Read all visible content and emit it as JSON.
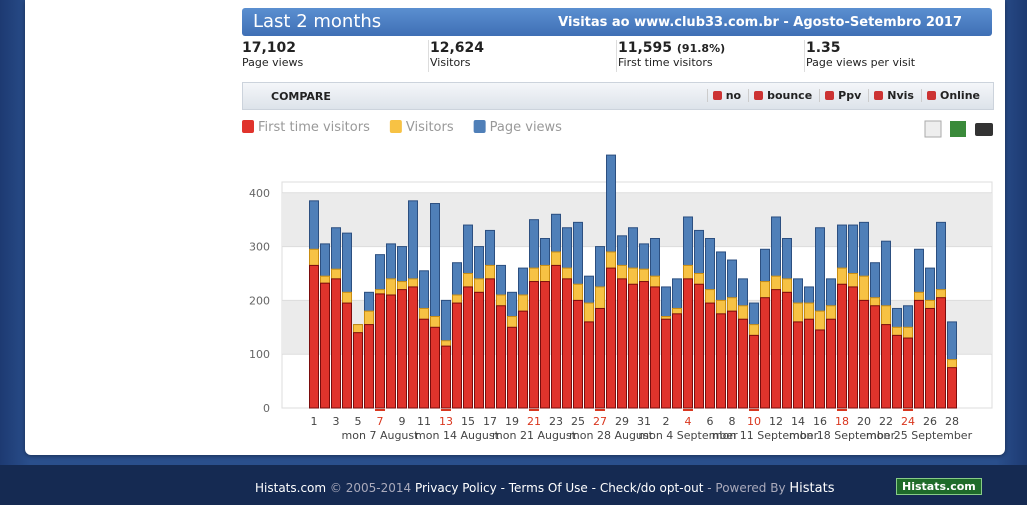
{
  "header": {
    "title": "Last 2 months",
    "site": "Visitas ao www.club33.com.br - Agosto-Setembro 2017"
  },
  "stats": [
    {
      "value": "17,102",
      "label": "Page views"
    },
    {
      "value": "12,624",
      "label": "Visitors"
    },
    {
      "value": "11,595",
      "extra": "(91.8%)",
      "label": "First time visitors"
    },
    {
      "value": "1.35",
      "label": "Page views per visit"
    }
  ],
  "toolbar": {
    "compare": "COMPARE",
    "buttons": [
      "no",
      "bounce",
      "Ppv",
      "Nvis",
      "Online"
    ]
  },
  "chart_data": {
    "type": "bar",
    "categories": [
      "1",
      null,
      "3",
      null,
      "5",
      null,
      "7",
      null,
      "9",
      null,
      "11",
      null,
      "13",
      null,
      "15",
      null,
      "17",
      null,
      "19",
      null,
      "21",
      null,
      "23",
      null,
      "25",
      null,
      "27",
      null,
      "29",
      null,
      "31",
      null,
      "2",
      null,
      "4",
      null,
      "6",
      null,
      "8",
      null,
      "10",
      null,
      "12",
      null,
      "14",
      null,
      "16",
      null,
      "18",
      null,
      "20",
      null,
      "22",
      null,
      "24",
      null,
      "26",
      null,
      "28"
    ],
    "highlighted_categories": [
      6,
      12,
      20,
      26,
      34,
      40,
      48,
      54
    ],
    "highlight_color": "#d9361e",
    "x_groups": [
      {
        "label": "mon 7 August",
        "start": 6
      },
      {
        "label": "mon 14 August",
        "start": 13
      },
      {
        "label": "mon 21 August",
        "start": 20
      },
      {
        "label": "mon 28 August",
        "start": 27
      },
      {
        "label": "mon 4 September",
        "start": 34
      },
      {
        "label": "mon 11 September",
        "start": 41
      },
      {
        "label": "mon 18 September",
        "start": 48
      },
      {
        "label": "mon 25 September",
        "start": 55
      }
    ],
    "series": [
      {
        "name": "Page views",
        "color": "#4f7fb8",
        "values": [
          385,
          305,
          335,
          325,
          155,
          215,
          285,
          305,
          300,
          385,
          255,
          380,
          200,
          270,
          340,
          300,
          330,
          265,
          215,
          260,
          350,
          315,
          360,
          335,
          345,
          245,
          300,
          470,
          320,
          335,
          305,
          315,
          225,
          240,
          355,
          330,
          315,
          290,
          275,
          240,
          195,
          295,
          355,
          315,
          240,
          225,
          335,
          240,
          340,
          340,
          345,
          270,
          310,
          185,
          190,
          295,
          260,
          345,
          160
        ]
      },
      {
        "name": "Visitors",
        "color": "#f7c244",
        "values": [
          295,
          245,
          258,
          215,
          155,
          180,
          220,
          240,
          235,
          240,
          185,
          170,
          125,
          210,
          250,
          240,
          265,
          210,
          170,
          210,
          260,
          265,
          290,
          260,
          230,
          195,
          225,
          290,
          265,
          260,
          258,
          245,
          170,
          185,
          265,
          250,
          220,
          200,
          205,
          190,
          155,
          235,
          245,
          240,
          195,
          195,
          180,
          190,
          260,
          250,
          245,
          205,
          190,
          150,
          150,
          215,
          200,
          220,
          90
        ]
      },
      {
        "name": "First time visitors",
        "color": "#e0332c",
        "values": [
          265,
          232,
          240,
          195,
          140,
          155,
          212,
          210,
          220,
          225,
          165,
          150,
          115,
          195,
          225,
          215,
          240,
          190,
          150,
          180,
          235,
          235,
          265,
          240,
          200,
          160,
          185,
          260,
          240,
          230,
          235,
          225,
          165,
          175,
          240,
          230,
          195,
          175,
          180,
          165,
          135,
          205,
          220,
          215,
          160,
          165,
          145,
          165,
          230,
          225,
          200,
          190,
          155,
          135,
          130,
          200,
          185,
          205,
          75
        ]
      }
    ],
    "legend_order": [
      2,
      1,
      0
    ],
    "ylim": [
      0,
      420
    ],
    "yticks": [
      0,
      100,
      200,
      300,
      400
    ],
    "grid": true
  },
  "footer": {
    "items": [
      "Histats.com",
      "© 2005-2014",
      "Privacy Policy",
      "-",
      "Terms Of Use",
      "-",
      "Check/do opt-out",
      "- Powered By",
      "Histats"
    ],
    "logo": "Histats.com"
  }
}
